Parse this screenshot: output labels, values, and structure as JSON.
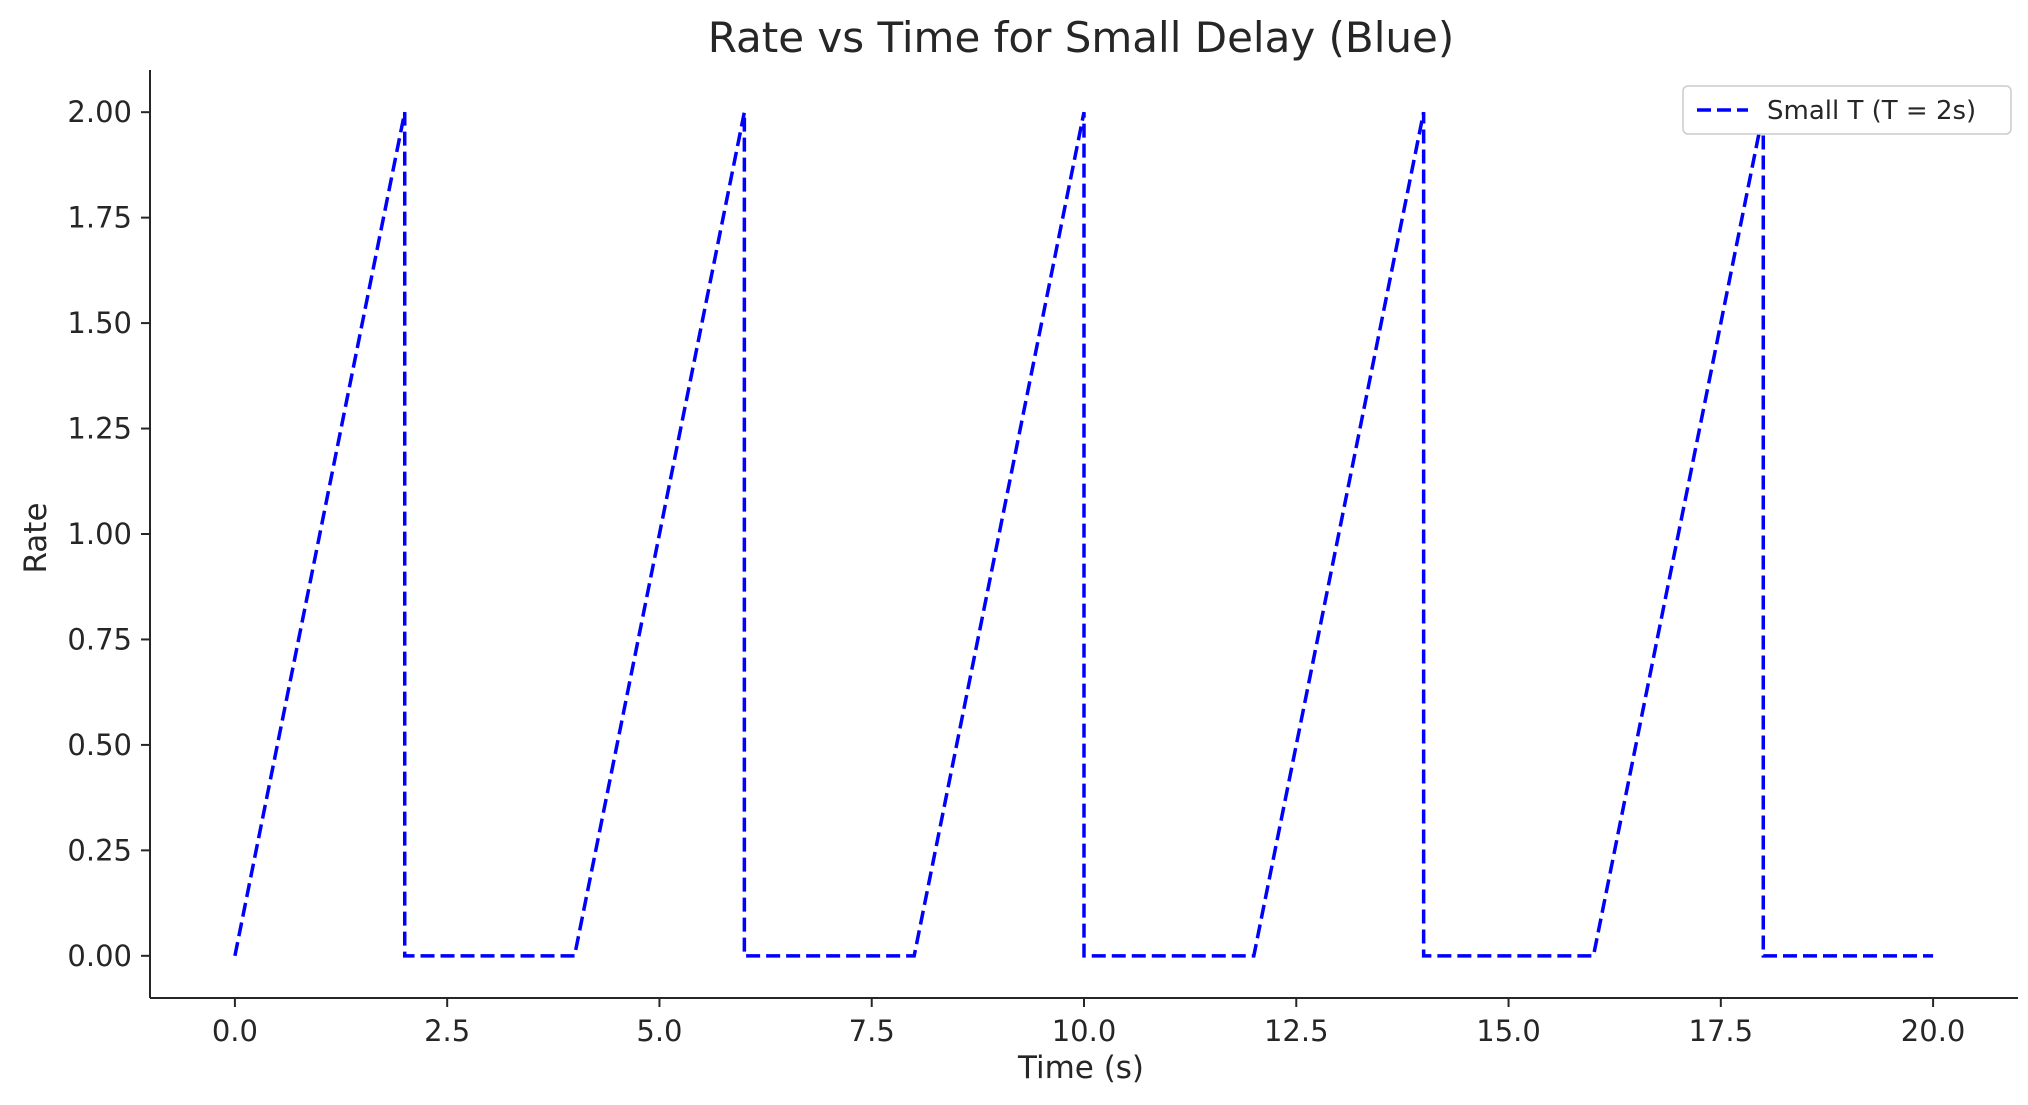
{
  "chart_data": {
    "type": "line",
    "title": "Rate vs Time for Small Delay (Blue)",
    "xlabel": "Time (s)",
    "ylabel": "Rate",
    "xlim": [
      -1.0,
      21.0
    ],
    "ylim": [
      -0.1,
      2.1
    ],
    "xticks": [
      0.0,
      2.5,
      5.0,
      7.5,
      10.0,
      12.5,
      15.0,
      17.5,
      20.0
    ],
    "xtick_labels": [
      "0.0",
      "2.5",
      "5.0",
      "7.5",
      "10.0",
      "12.5",
      "15.0",
      "17.5",
      "20.0"
    ],
    "yticks": [
      0.0,
      0.25,
      0.5,
      0.75,
      1.0,
      1.25,
      1.5,
      1.75,
      2.0
    ],
    "ytick_labels": [
      "0.00",
      "0.25",
      "0.50",
      "0.75",
      "1.00",
      "1.25",
      "1.50",
      "1.75",
      "2.00"
    ],
    "grid": false,
    "legend_position": "top-right",
    "series": [
      {
        "name": "Small T (T = 2s)",
        "color": "#0000ff",
        "line_style": "dashed",
        "x": [
          0,
          2,
          2,
          4,
          6,
          6,
          8,
          10,
          10,
          12,
          14,
          14,
          16,
          18,
          18,
          20
        ],
        "y": [
          0,
          2,
          0,
          0,
          2,
          0,
          0,
          2,
          0,
          0,
          2,
          0,
          0,
          2,
          0,
          0
        ]
      }
    ]
  }
}
